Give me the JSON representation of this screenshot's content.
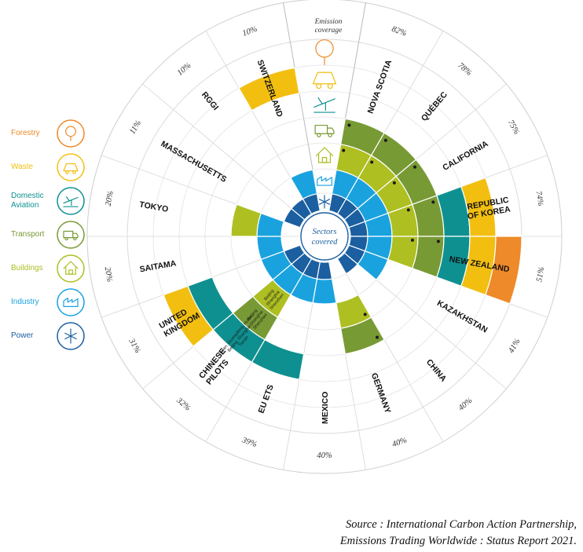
{
  "center_label": [
    "Sectors",
    "covered"
  ],
  "coverage_label": [
    "Emission",
    "coverage"
  ],
  "sectors": [
    {
      "key": "power",
      "name": "Power",
      "color": "#1b5fa1",
      "icon": "power-icon"
    },
    {
      "key": "industry",
      "name": "Industry",
      "color": "#1aa2df",
      "icon": "industry-icon"
    },
    {
      "key": "buildings",
      "name": "Buildings",
      "color": "#aebf22",
      "icon": "buildings-icon"
    },
    {
      "key": "transport",
      "name": "Transport",
      "color": "#789a35",
      "icon": "transport-icon"
    },
    {
      "key": "aviation",
      "name": "Domestic Aviation",
      "color": "#0f9090",
      "icon": "aviation-icon"
    },
    {
      "key": "waste",
      "name": "Waste",
      "color": "#f2bf11",
      "icon": "waste-icon"
    },
    {
      "key": "forestry",
      "name": "Forestry",
      "color": "#ee8a2a",
      "icon": "forestry-icon"
    }
  ],
  "legend": [
    {
      "label": "Forestry",
      "color": "#ee8a2a",
      "icon": "forestry-icon"
    },
    {
      "label": "Waste",
      "color": "#f2bf11",
      "icon": "waste-icon"
    },
    {
      "label": "Domestic Aviation",
      "color": "#0f9090",
      "icon": "aviation-icon"
    },
    {
      "label": "Transport",
      "color": "#789a35",
      "icon": "transport-icon"
    },
    {
      "label": "Buildings",
      "color": "#aebf22",
      "icon": "buildings-icon"
    },
    {
      "label": "Industry",
      "color": "#1aa2df",
      "icon": "industry-icon"
    },
    {
      "label": "Power",
      "color": "#1b5fa1",
      "icon": "power-icon"
    }
  ],
  "jurisdictions": [
    {
      "name": [
        "NOVA SCOTIA"
      ],
      "coverage": "82%",
      "sectors": [
        1,
        1,
        1,
        1,
        0,
        0,
        0
      ],
      "stars": [
        0,
        0,
        1,
        1,
        0,
        0,
        0
      ]
    },
    {
      "name": [
        "QUÉBEC"
      ],
      "coverage": "78%",
      "sectors": [
        1,
        1,
        1,
        1,
        0,
        0,
        0
      ],
      "stars": [
        0,
        0,
        1,
        1,
        0,
        0,
        0
      ]
    },
    {
      "name": [
        "CALIFORNIA"
      ],
      "coverage": "75%",
      "sectors": [
        1,
        1,
        1,
        1,
        0,
        0,
        0
      ],
      "stars": [
        0,
        0,
        1,
        1,
        0,
        0,
        0
      ]
    },
    {
      "name": [
        "REPUBLIC",
        "OF KOREA"
      ],
      "coverage": "74%",
      "sectors": [
        1,
        1,
        1,
        1,
        1,
        1,
        0
      ],
      "stars": [
        0,
        0,
        1,
        1,
        0,
        0,
        0
      ]
    },
    {
      "name": [
        "NEW ZEALAND"
      ],
      "coverage": "51%",
      "sectors": [
        1,
        1,
        1,
        1,
        1,
        1,
        1
      ],
      "stars": [
        0,
        0,
        1,
        1,
        0,
        0,
        0
      ]
    },
    {
      "name": [
        "KAZAKHSTAN"
      ],
      "coverage": "41%",
      "sectors": [
        1,
        1,
        0,
        0,
        0,
        0,
        0
      ],
      "stars": [
        0,
        0,
        0,
        0,
        0,
        0,
        0
      ]
    },
    {
      "name": [
        "CHINA"
      ],
      "coverage": "40%",
      "sectors": [
        1,
        0,
        0,
        0,
        0,
        0,
        0
      ],
      "stars": [
        0,
        0,
        0,
        0,
        0,
        0,
        0
      ]
    },
    {
      "name": [
        "GERMANY"
      ],
      "coverage": "40%",
      "sectors": [
        0,
        0,
        1,
        1,
        0,
        0,
        0
      ],
      "stars": [
        0,
        0,
        1,
        1,
        0,
        0,
        0
      ]
    },
    {
      "name": [
        "MEXICO"
      ],
      "coverage": "40%",
      "sectors": [
        1,
        1,
        0,
        0,
        0,
        0,
        0
      ],
      "stars": [
        0,
        0,
        0,
        0,
        0,
        0,
        0
      ]
    },
    {
      "name": [
        "EU ETS"
      ],
      "coverage": "39%",
      "sectors": [
        1,
        1,
        0,
        0,
        1,
        0,
        0
      ],
      "stars": [
        0,
        0,
        0,
        0,
        0,
        0,
        0
      ]
    },
    {
      "name": [
        "CHINESE",
        "PILOTS"
      ],
      "coverage": "32%",
      "sectors": [
        1,
        1,
        1,
        1,
        1,
        0,
        0
      ],
      "stars": [
        0,
        0,
        0,
        0,
        0,
        0,
        0
      ]
    },
    {
      "name": [
        "UNITED",
        "KINGDOM"
      ],
      "coverage": "31%",
      "sectors": [
        1,
        1,
        0,
        0,
        1,
        1,
        0
      ],
      "stars": [
        0,
        0,
        0,
        0,
        0,
        0,
        0
      ]
    },
    {
      "name": [
        "SAITAMA"
      ],
      "coverage": "20%",
      "sectors": [
        0,
        1,
        0,
        0,
        0,
        0,
        0
      ],
      "stars": [
        0,
        0,
        0,
        0,
        0,
        0,
        0
      ]
    },
    {
      "name": [
        "TOKYO"
      ],
      "coverage": "20%",
      "sectors": [
        0,
        1,
        1,
        0,
        0,
        0,
        0
      ],
      "stars": [
        0,
        0,
        0,
        0,
        0,
        0,
        0
      ]
    },
    {
      "name": [
        "MASSACHUSETTS"
      ],
      "coverage": "11%",
      "sectors": [
        1,
        0,
        0,
        0,
        0,
        0,
        0
      ],
      "stars": [
        0,
        0,
        0,
        0,
        0,
        0,
        0
      ]
    },
    {
      "name": [
        "RGGI"
      ],
      "coverage": "10%",
      "sectors": [
        1,
        0,
        0,
        0,
        0,
        0,
        0
      ],
      "stars": [
        0,
        0,
        0,
        0,
        0,
        0,
        0
      ]
    },
    {
      "name": [
        "SWITZERLAND"
      ],
      "coverage": "10%",
      "sectors": [
        1,
        1,
        0,
        0,
        0,
        1,
        0
      ],
      "stars": [
        0,
        0,
        0,
        0,
        0,
        0,
        0
      ]
    }
  ],
  "pilot_notes": {
    "buildings": [
      "Beijing",
      "Shanghai",
      "Shenzhen"
    ],
    "transport": [
      "Beijing",
      "Shanghai",
      "Shenzhen"
    ],
    "aviation": [
      "Fujian, Guangdong, Hubei,",
      "Beijing, Shanghai,",
      "Tianjin"
    ]
  },
  "source": [
    "Source : International Carbon Action Partnership,",
    "Emissions Trading Worldwide : Status Report 2021."
  ]
}
